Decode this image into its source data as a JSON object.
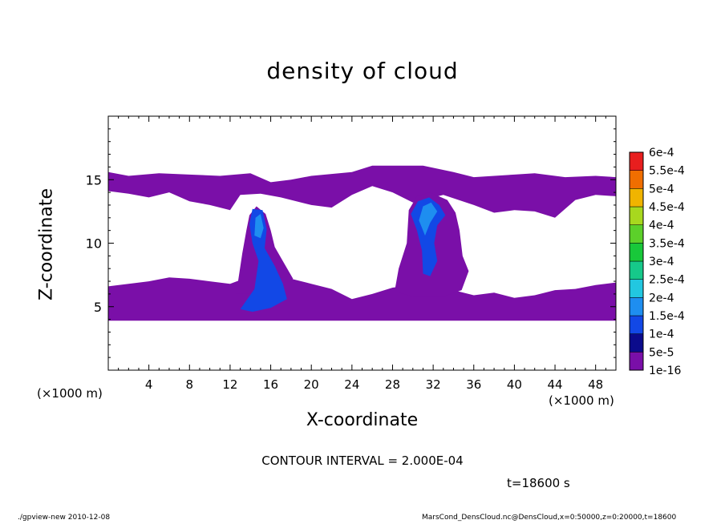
{
  "chart_data": {
    "type": "heatmap",
    "title": "density of cloud",
    "xlabel": "X-coordinate",
    "ylabel": "Z-coordinate",
    "x_unit": "(×1000 m)",
    "z_unit": "(×1000 m)",
    "xlim": [
      0,
      50
    ],
    "ylim": [
      0,
      20
    ],
    "x_ticks": [
      4,
      8,
      12,
      16,
      20,
      24,
      28,
      32,
      36,
      40,
      44,
      48
    ],
    "y_ticks": [
      5,
      10,
      15
    ],
    "colorbar": {
      "levels": [
        "1e-16",
        "5e-5",
        "1e-4",
        "1.5e-4",
        "2e-4",
        "2.5e-4",
        "3e-4",
        "3.5e-4",
        "4e-4",
        "4.5e-4",
        "5e-4",
        "5.5e-4",
        "6e-4"
      ],
      "colors": [
        "#7a0fa8",
        "#0b0b8c",
        "#1248e6",
        "#1e8ef0",
        "#22c7e0",
        "#16c98a",
        "#18c83a",
        "#5cd02a",
        "#a8d81e",
        "#f0b400",
        "#f06e00",
        "#e81e1e",
        "#f2888a"
      ]
    },
    "regions": [
      {
        "level": "1e-16",
        "description_x": [
          0,
          50
        ],
        "z_upper_band": [
          13.8,
          16.2
        ],
        "z_lower_band": [
          3.9,
          7.0
        ]
      },
      {
        "level": "1e-4",
        "x": [
          12.5,
          18
        ],
        "z": [
          4.5,
          12.8
        ]
      },
      {
        "level": "1e-4",
        "x": [
          29.5,
          33.5
        ],
        "z": [
          7.5,
          13.7
        ]
      }
    ],
    "contour_interval": "CONTOUR INTERVAL = 2.000E-04",
    "time": "t=18600 s"
  },
  "footer": {
    "left": "./gpview-new   2010-12-08",
    "right": "MarsCond_DensCloud.nc@DensCloud,x=0:50000,z=0:20000,t=18600"
  }
}
